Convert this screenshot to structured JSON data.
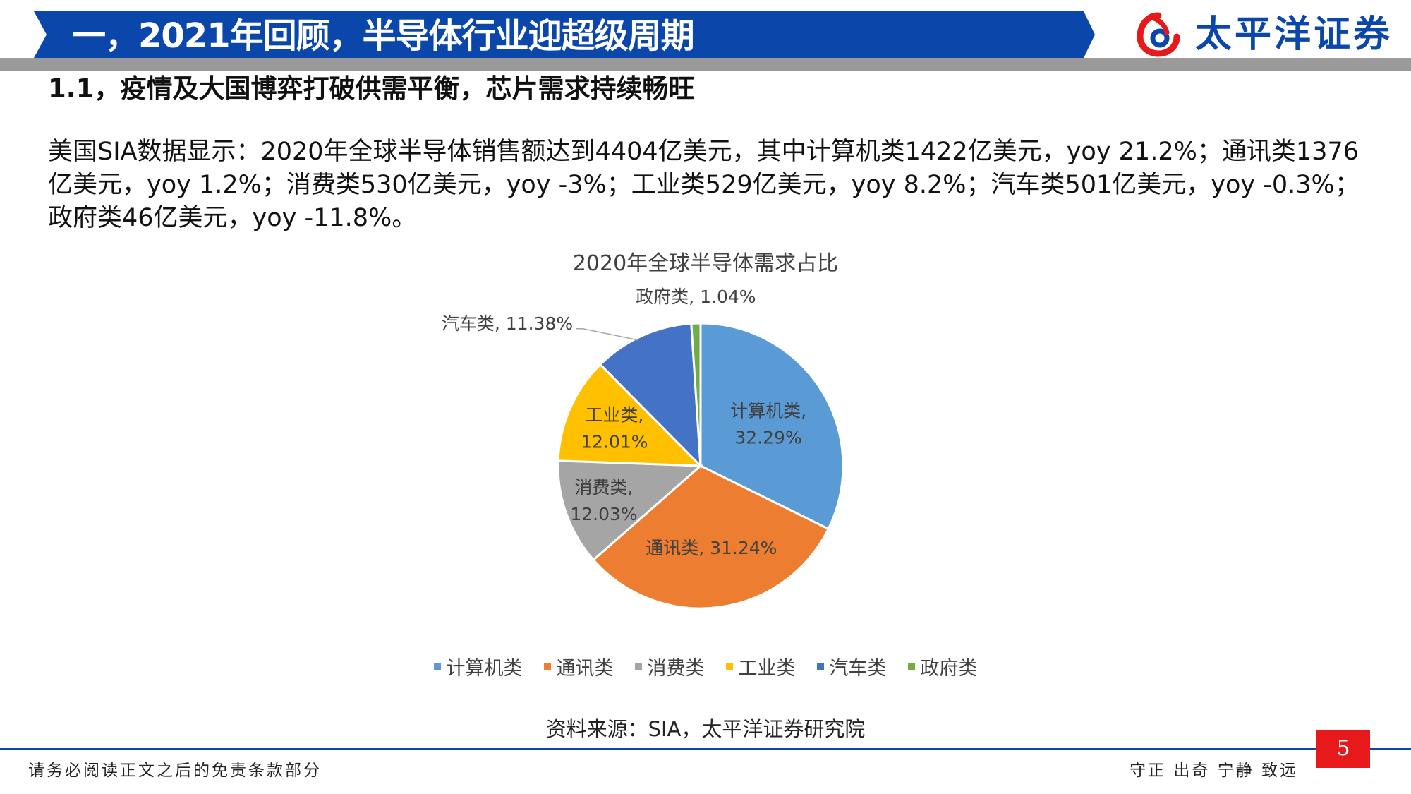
{
  "header": {
    "title": "一，2021年回顾，半导体行业迎超级周期",
    "logo_text": "太平洋证券",
    "band_color": "#0b47ab"
  },
  "section": {
    "heading": "1.1，疫情及大国博弈打破供需平衡，芯片需求持续畅旺"
  },
  "body": {
    "paragraph": "美国SIA数据显示：2020年全球半导体销售额达到4404亿美元，其中计算机类1422亿美元，yoy 21.2%；通讯类1376亿美元，yoy 1.2%；消费类530亿美元，yoy -3%；工业类529亿美元，yoy 8.2%；汽车类501亿美元，yoy -0.3%；政府类46亿美元，yoy -11.8%。"
  },
  "chart_data": {
    "type": "pie",
    "title": "2020年全球半导体需求占比",
    "categories": [
      "计算机类",
      "通讯类",
      "消费类",
      "工业类",
      "汽车类",
      "政府类"
    ],
    "values": [
      32.29,
      31.24,
      12.03,
      12.01,
      11.38,
      1.04
    ],
    "colors": [
      "#5b9bd5",
      "#ed7d31",
      "#a5a5a5",
      "#ffc000",
      "#4472c4",
      "#70ad47"
    ],
    "data_labels": [
      [
        "计算机类,",
        "32.29%"
      ],
      [
        "通讯类, 31.24%"
      ],
      [
        "消费类,",
        "12.03%"
      ],
      [
        "工业类,",
        "12.01%"
      ],
      [
        "汽车类, 11.38%"
      ],
      [
        "政府类, 1.04%"
      ]
    ],
    "legend": [
      "计算机类",
      "通讯类",
      "消费类",
      "工业类",
      "汽车类",
      "政府类"
    ],
    "legend_position": "bottom"
  },
  "source": "资料来源：SIA，太平洋证券研究院",
  "footer": {
    "disclaimer": "请务必阅读正文之后的免责条款部分",
    "motto": "守正 出奇 宁静 致远",
    "page_number": "5"
  }
}
